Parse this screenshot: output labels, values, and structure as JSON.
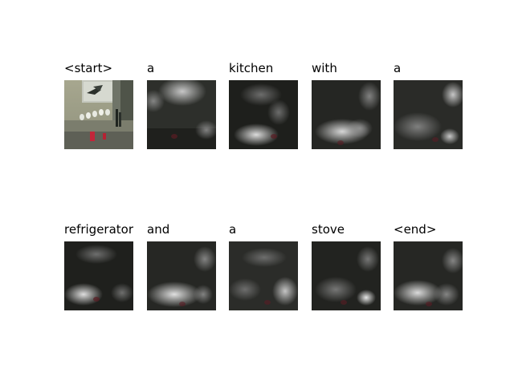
{
  "caption_tokens": [
    {
      "word": "<start>",
      "kind": "original-image"
    },
    {
      "word": "a",
      "kind": "attention-map"
    },
    {
      "word": "kitchen",
      "kind": "attention-map"
    },
    {
      "word": "with",
      "kind": "attention-map"
    },
    {
      "word": "a",
      "kind": "attention-map"
    },
    {
      "word": "refrigerator",
      "kind": "attention-map"
    },
    {
      "word": "and",
      "kind": "attention-map"
    },
    {
      "word": "a",
      "kind": "attention-map"
    },
    {
      "word": "stove",
      "kind": "attention-map"
    },
    {
      "word": "<end>",
      "kind": "attention-map"
    }
  ],
  "grid": {
    "rows": 2,
    "cols": 5
  }
}
